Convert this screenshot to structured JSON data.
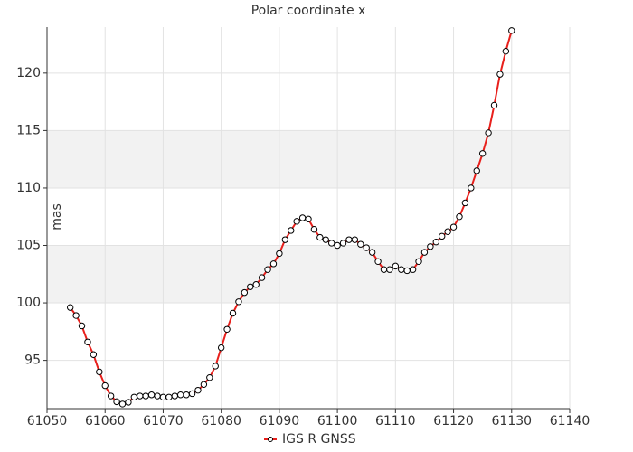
{
  "chart_data": {
    "type": "line",
    "title": "Polar coordinate x",
    "y_label": "mas",
    "x": [
      61054,
      61055,
      61056,
      61057,
      61058,
      61059,
      61060,
      61061,
      61062,
      61063,
      61064,
      61065,
      61066,
      61067,
      61068,
      61069,
      61070,
      61071,
      61072,
      61073,
      61074,
      61075,
      61076,
      61077,
      61078,
      61079,
      61080,
      61081,
      61082,
      61083,
      61084,
      61085,
      61086,
      61087,
      61088,
      61089,
      61090,
      61091,
      61092,
      61093,
      61094,
      61095,
      61096,
      61097,
      61098,
      61099,
      61100,
      61101,
      61102,
      61103,
      61104,
      61105,
      61106,
      61107,
      61108,
      61109,
      61110,
      61111,
      61112,
      61113,
      61114,
      61115,
      61116,
      61117,
      61118,
      61119,
      61120,
      61121,
      61122,
      61123,
      61124,
      61125,
      61126,
      61127,
      61128,
      61129,
      61130
    ],
    "series": [
      {
        "name": "IGS R GNSS",
        "color": "#e8201c",
        "values": [
          99.6,
          98.9,
          98.0,
          96.6,
          95.5,
          94.0,
          92.8,
          91.9,
          91.4,
          91.2,
          91.35,
          91.8,
          91.9,
          91.9,
          92.0,
          91.9,
          91.8,
          91.8,
          91.9,
          92.0,
          92.0,
          92.1,
          92.4,
          92.9,
          93.5,
          94.5,
          96.1,
          97.7,
          99.1,
          100.1,
          100.9,
          101.4,
          101.6,
          102.2,
          102.9,
          103.4,
          104.3,
          105.5,
          106.3,
          107.1,
          107.4,
          107.3,
          106.4,
          105.7,
          105.5,
          105.2,
          105.0,
          105.2,
          105.5,
          105.5,
          105.1,
          104.8,
          104.4,
          103.6,
          102.9,
          102.9,
          103.2,
          102.9,
          102.8,
          102.9,
          103.6,
          104.4,
          104.9,
          105.3,
          105.8,
          106.2,
          106.6,
          107.5,
          108.7,
          110.0,
          111.5,
          113.0,
          114.8,
          117.2,
          119.9,
          121.9,
          123.7
        ]
      }
    ],
    "xlim": [
      61050,
      61140
    ],
    "xticks": [
      61050,
      61060,
      61070,
      61080,
      61090,
      61100,
      61110,
      61120,
      61130,
      61140
    ],
    "ylim": [
      90.8,
      124
    ],
    "yticks": [
      95,
      100,
      105,
      110,
      115,
      120
    ],
    "grid": true
  }
}
